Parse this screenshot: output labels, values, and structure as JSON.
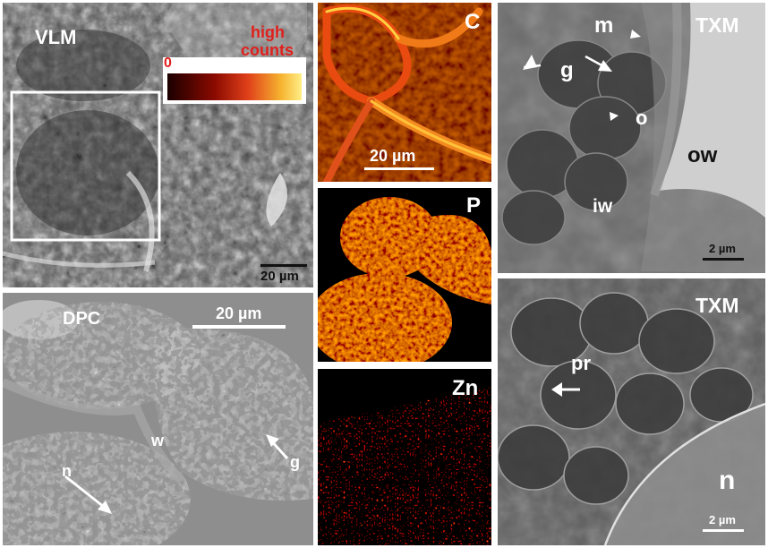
{
  "panels": {
    "vlm": {
      "label": "VLM",
      "colorbar_low": "0",
      "colorbar_high_line1": "high",
      "colorbar_high_line2": "counts",
      "scale": "20 µm"
    },
    "dpc": {
      "label": "DPC",
      "scale": "20 µm",
      "w": "w",
      "n": "n",
      "g": "g"
    },
    "c": {
      "label": "C",
      "scale": "20 µm"
    },
    "p": {
      "label": "P"
    },
    "zn": {
      "label": "Zn"
    },
    "txm_top": {
      "label": "TXM",
      "m": "m",
      "g": "g",
      "o": "o",
      "ow": "ow",
      "iw": "iw",
      "scale": "2 µm"
    },
    "txm_bottom": {
      "label": "TXM",
      "pr": "pr",
      "n": "n",
      "scale": "2 µm"
    }
  },
  "colors": {
    "label_white": "#ffffff",
    "label_red": "#e0201c",
    "heat_low": "#1a0000",
    "heat_high": "#ffee88"
  }
}
